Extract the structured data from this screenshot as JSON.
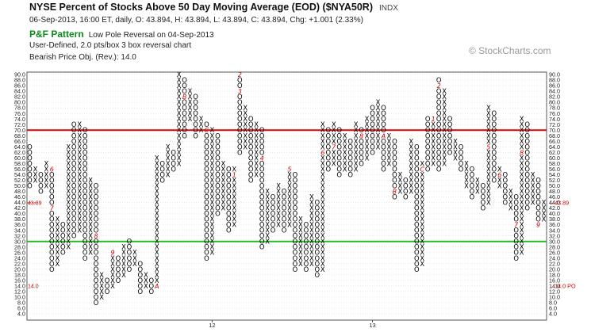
{
  "header": {
    "title": "NYSE Percent of Stocks Above 50 Day Moving Average (EOD) ($NYA50R)",
    "exchange_tag": "INDX",
    "quote_line": "06-Sep-2013, 16:00 ET, daily, O: 43.894, H: 43.894, L: 43.894, C: 43.894, Chg: +1.001 (2.33%)",
    "pf_label": "P&F Pattern",
    "pattern_text": "Low Pole Reversal on 04-Sep-2013",
    "settings_line": "User-Defined, 2.0 pts/box 3 box reversal chart",
    "objective_line": "Bearish Price Obj. (Rev.): 14.0"
  },
  "watermark": "© StockCharts.com",
  "colors": {
    "x_mark": "#000000",
    "o_mark": "#000000",
    "month_marker": "#cc0000",
    "upper_line": "#dd0000",
    "lower_line": "#22bb22",
    "grid": "#cfcfcf",
    "last_price": "#cc0000",
    "price_objective": "#cc0000"
  },
  "chart_data": {
    "type": "point-and-figure",
    "box_size": 2.0,
    "reversal": 3,
    "y_axis": {
      "min": 4.0,
      "max": 90.0,
      "ticks": [
        4.0,
        6.0,
        8.0,
        10.0,
        12.0,
        14.0,
        16.0,
        18.0,
        20.0,
        22.0,
        24.0,
        26.0,
        28.0,
        30.0,
        32.0,
        34.0,
        36.0,
        38.0,
        40.0,
        42.0,
        44.0,
        46.0,
        48.0,
        50.0,
        52.0,
        54.0,
        56.0,
        58.0,
        60.0,
        62.0,
        64.0,
        66.0,
        68.0,
        70.0,
        72.0,
        74.0,
        76.0,
        78.0,
        80.0,
        82.0,
        84.0,
        86.0,
        88.0,
        90.0
      ],
      "side": "both"
    },
    "x_axis_labels": [
      {
        "column": 33,
        "label": "12"
      },
      {
        "column": 62,
        "label": "13"
      }
    ],
    "reference_lines": [
      {
        "value": 70.0,
        "color": "red"
      },
      {
        "value": 30.0,
        "color": "green"
      }
    ],
    "last_price": {
      "label": "43.89",
      "value": 43.89
    },
    "price_objective": {
      "label": "14.0 PO",
      "value": 14.0
    },
    "columns": [
      {
        "t": "O",
        "hi": 64,
        "lo": 50
      },
      {
        "t": "X",
        "hi": 56,
        "lo": 52
      },
      {
        "t": "O",
        "hi": 54,
        "lo": 48
      },
      {
        "t": "X",
        "hi": 58,
        "lo": 50
      },
      {
        "t": "O",
        "hi": 56,
        "lo": 20,
        "m": [
          {
            "v": 56,
            "c": "6"
          },
          {
            "v": 42,
            "c": "7"
          }
        ]
      },
      {
        "t": "X",
        "hi": 38,
        "lo": 22
      },
      {
        "t": "O",
        "hi": 36,
        "lo": 26
      },
      {
        "t": "X",
        "hi": 64,
        "lo": 28
      },
      {
        "t": "O",
        "hi": 72,
        "lo": 32
      },
      {
        "t": "X",
        "hi": 72,
        "lo": 34
      },
      {
        "t": "O",
        "hi": 70,
        "lo": 24
      },
      {
        "t": "X",
        "hi": 52,
        "lo": 26
      },
      {
        "t": "O",
        "hi": 50,
        "lo": 8,
        "m": [
          {
            "v": 32,
            "c": "8"
          }
        ]
      },
      {
        "t": "X",
        "hi": 18,
        "lo": 10
      },
      {
        "t": "O",
        "hi": 16,
        "lo": 12
      },
      {
        "t": "X",
        "hi": 26,
        "lo": 14,
        "m": [
          {
            "v": 26,
            "c": "9"
          }
        ]
      },
      {
        "t": "O",
        "hi": 24,
        "lo": 16
      },
      {
        "t": "X",
        "hi": 28,
        "lo": 18
      },
      {
        "t": "O",
        "hi": 30,
        "lo": 20
      },
      {
        "t": "X",
        "hi": 26,
        "lo": 22
      },
      {
        "t": "O",
        "hi": 22,
        "lo": 12
      },
      {
        "t": "X",
        "hi": 18,
        "lo": 14
      },
      {
        "t": "O",
        "hi": 16,
        "lo": 12
      },
      {
        "t": "X",
        "hi": 60,
        "lo": 14,
        "m": [
          {
            "v": 14,
            "c": "A"
          }
        ]
      },
      {
        "t": "O",
        "hi": 58,
        "lo": 52
      },
      {
        "t": "X",
        "hi": 64,
        "lo": 54
      },
      {
        "t": "O",
        "hi": 62,
        "lo": 56
      },
      {
        "t": "X",
        "hi": 90,
        "lo": 58
      },
      {
        "t": "O",
        "hi": 88,
        "lo": 68,
        "m": [
          {
            "v": 82,
            "c": "B"
          }
        ]
      },
      {
        "t": "X",
        "hi": 84,
        "lo": 74
      },
      {
        "t": "O",
        "hi": 82,
        "lo": 68
      },
      {
        "t": "X",
        "hi": 74,
        "lo": 70
      },
      {
        "t": "O",
        "hi": 72,
        "lo": 24,
        "m": [
          {
            "v": 70,
            "c": "C"
          }
        ]
      },
      {
        "t": "X",
        "hi": 70,
        "lo": 26
      },
      {
        "t": "O",
        "hi": 68,
        "lo": 40
      },
      {
        "t": "X",
        "hi": 58,
        "lo": 42
      },
      {
        "t": "O",
        "hi": 56,
        "lo": 34
      },
      {
        "t": "X",
        "hi": 56,
        "lo": 36,
        "m": [
          {
            "v": 54,
            "c": "1"
          }
        ]
      },
      {
        "t": "O",
        "hi": 90,
        "lo": 62,
        "m": [
          {
            "v": 90,
            "c": "2"
          },
          {
            "v": 84,
            "c": "3"
          }
        ]
      },
      {
        "t": "X",
        "hi": 78,
        "lo": 64
      },
      {
        "t": "O",
        "hi": 74,
        "lo": 52
      },
      {
        "t": "X",
        "hi": 72,
        "lo": 54
      },
      {
        "t": "O",
        "hi": 70,
        "lo": 28,
        "m": [
          {
            "v": 60,
            "c": "4"
          }
        ]
      },
      {
        "t": "X",
        "hi": 48,
        "lo": 30
      },
      {
        "t": "O",
        "hi": 46,
        "lo": 34
      },
      {
        "t": "X",
        "hi": 50,
        "lo": 36
      },
      {
        "t": "O",
        "hi": 48,
        "lo": 34
      },
      {
        "t": "X",
        "hi": 56,
        "lo": 36,
        "m": [
          {
            "v": 56,
            "c": "5"
          }
        ]
      },
      {
        "t": "O",
        "hi": 54,
        "lo": 20
      },
      {
        "t": "X",
        "hi": 38,
        "lo": 22
      },
      {
        "t": "O",
        "hi": 36,
        "lo": 20
      },
      {
        "t": "X",
        "hi": 46,
        "lo": 22
      },
      {
        "t": "O",
        "hi": 44,
        "lo": 18
      },
      {
        "t": "X",
        "hi": 72,
        "lo": 20,
        "m": [
          {
            "v": 62,
            "c": "6"
          }
        ]
      },
      {
        "t": "O",
        "hi": 70,
        "lo": 56
      },
      {
        "t": "X",
        "hi": 72,
        "lo": 58,
        "m": [
          {
            "v": 64,
            "c": "7"
          }
        ]
      },
      {
        "t": "O",
        "hi": 70,
        "lo": 54
      },
      {
        "t": "X",
        "hi": 68,
        "lo": 56
      },
      {
        "t": "O",
        "hi": 66,
        "lo": 54
      },
      {
        "t": "X",
        "hi": 72,
        "lo": 56
      },
      {
        "t": "O",
        "hi": 70,
        "lo": 58,
        "m": [
          {
            "v": 68,
            "c": "8"
          }
        ]
      },
      {
        "t": "X",
        "hi": 74,
        "lo": 60
      },
      {
        "t": "O",
        "hi": 78,
        "lo": 62
      },
      {
        "t": "X",
        "hi": 80,
        "lo": 64
      },
      {
        "t": "O",
        "hi": 78,
        "lo": 56,
        "m": [
          {
            "v": 68,
            "c": "A"
          }
        ]
      },
      {
        "t": "X",
        "hi": 68,
        "lo": 58
      },
      {
        "t": "O",
        "hi": 66,
        "lo": 46,
        "m": [
          {
            "v": 48,
            "c": "B"
          }
        ]
      },
      {
        "t": "X",
        "hi": 54,
        "lo": 48
      },
      {
        "t": "O",
        "hi": 52,
        "lo": 46
      },
      {
        "t": "X",
        "hi": 66,
        "lo": 48
      },
      {
        "t": "O",
        "hi": 64,
        "lo": 20
      },
      {
        "t": "X",
        "hi": 58,
        "lo": 22,
        "m": [
          {
            "v": 56,
            "c": "C"
          }
        ]
      },
      {
        "t": "O",
        "hi": 74,
        "lo": 56
      },
      {
        "t": "X",
        "hi": 74,
        "lo": 58,
        "m": [
          {
            "v": 74,
            "c": "1"
          }
        ]
      },
      {
        "t": "O",
        "hi": 88,
        "lo": 56,
        "m": [
          {
            "v": 86,
            "c": "2"
          }
        ]
      },
      {
        "t": "X",
        "hi": 84,
        "lo": 58
      },
      {
        "t": "O",
        "hi": 74,
        "lo": 62
      },
      {
        "t": "X",
        "hi": 66,
        "lo": 60
      },
      {
        "t": "O",
        "hi": 64,
        "lo": 56
      },
      {
        "t": "X",
        "hi": 58,
        "lo": 50
      },
      {
        "t": "O",
        "hi": 56,
        "lo": 46
      },
      {
        "t": "X",
        "hi": 52,
        "lo": 48
      },
      {
        "t": "O",
        "hi": 50,
        "lo": 42
      },
      {
        "t": "X",
        "hi": 78,
        "lo": 44,
        "m": [
          {
            "v": 64,
            "c": "5"
          }
        ]
      },
      {
        "t": "O",
        "hi": 76,
        "lo": 52
      },
      {
        "t": "X",
        "hi": 56,
        "lo": 50,
        "m": [
          {
            "v": 54,
            "c": "6"
          }
        ]
      },
      {
        "t": "O",
        "hi": 54,
        "lo": 44
      },
      {
        "t": "X",
        "hi": 48,
        "lo": 42
      },
      {
        "t": "O",
        "hi": 46,
        "lo": 24,
        "m": [
          {
            "v": 36,
            "c": "7"
          }
        ]
      },
      {
        "t": "X",
        "hi": 74,
        "lo": 26,
        "m": [
          {
            "v": 62,
            "c": "8"
          }
        ]
      },
      {
        "t": "O",
        "hi": 72,
        "lo": 42
      },
      {
        "t": "X",
        "hi": 54,
        "lo": 44
      },
      {
        "t": "O",
        "hi": 52,
        "lo": 36,
        "m": [
          {
            "v": 36,
            "c": "9"
          }
        ]
      },
      {
        "t": "X",
        "hi": 44,
        "lo": 38
      }
    ]
  }
}
